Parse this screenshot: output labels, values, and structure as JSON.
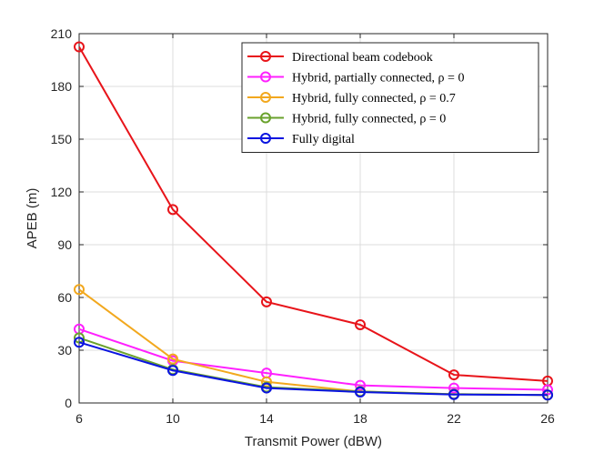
{
  "chart_data": {
    "type": "line",
    "title": "",
    "xlabel": "Transmit Power (dBW)",
    "ylabel": "APEB (m)",
    "xlim": [
      6,
      26
    ],
    "ylim": [
      0,
      210
    ],
    "xticks": [
      "6",
      "10",
      "14",
      "18",
      "22",
      "26"
    ],
    "yticks": [
      "0",
      "30",
      "60",
      "90",
      "120",
      "150",
      "180",
      "210"
    ],
    "grid": true,
    "legend_position": "top-right",
    "x": [
      6,
      10,
      14,
      18,
      22,
      26
    ],
    "series": [
      {
        "name": "Directional beam codebook",
        "color": "#e8141a",
        "marker": "circle",
        "values": [
          202.5,
          110,
          57.5,
          44.5,
          16,
          12.5
        ]
      },
      {
        "name": "Hybrid, partially connected, ρ = 0",
        "color": "#ff20ff",
        "marker": "circle",
        "values": [
          42,
          24,
          17,
          10,
          8.5,
          7.5
        ]
      },
      {
        "name": "Hybrid, fully connected, ρ = 0.7",
        "color": "#f2a81e",
        "marker": "circle",
        "values": [
          64.5,
          25,
          12,
          6.5,
          5,
          4.5
        ]
      },
      {
        "name": "Hybrid, fully connected, ρ = 0",
        "color": "#6aa22c",
        "marker": "circle",
        "values": [
          37,
          19,
          9,
          6.5,
          5,
          4.5
        ]
      },
      {
        "name": "Fully digital",
        "color": "#0a14e0",
        "marker": "circle",
        "values": [
          34.5,
          18.5,
          8.5,
          6.2,
          4.8,
          4.5
        ]
      }
    ]
  }
}
